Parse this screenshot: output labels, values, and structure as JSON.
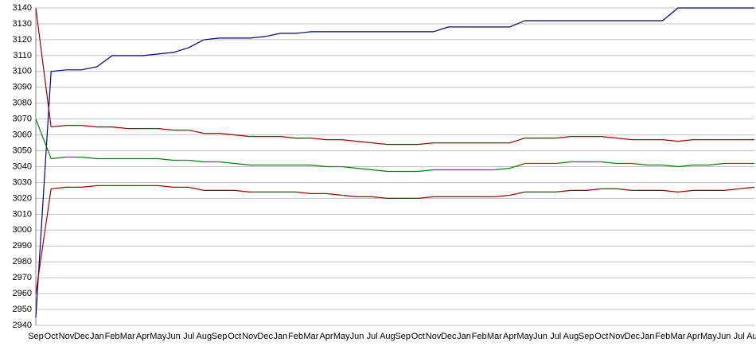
{
  "chart_data": {
    "type": "line",
    "categories": [
      "Sep",
      "Oct",
      "Nov",
      "Dec",
      "Jan",
      "Feb",
      "Mar",
      "Apr",
      "May",
      "Jun",
      "Jul",
      "Aug",
      "Sep",
      "Oct",
      "Nov",
      "Dec",
      "Jan",
      "Feb",
      "Mar",
      "Apr",
      "May",
      "Jun",
      "Jul",
      "Aug",
      "Sep",
      "Oct",
      "Nov",
      "Dec",
      "Jan",
      "Feb",
      "Mar",
      "Apr",
      "May",
      "Jun",
      "Jul",
      "Aug",
      "Sep",
      "Oct",
      "Nov",
      "Dec",
      "Jan",
      "Feb",
      "Mar",
      "Apr",
      "May",
      "Jun",
      "Jul",
      "Aug"
    ],
    "series": [
      {
        "color": "#000080",
        "values": [
          2945,
          3100,
          3101,
          3101,
          3103,
          3110,
          3110,
          3110,
          3111,
          3112,
          3115,
          3120,
          3121,
          3121,
          3121,
          3122,
          3124,
          3124,
          3125,
          3125,
          3125,
          3125,
          3125,
          3125,
          3125,
          3125,
          3125,
          3128,
          3128,
          3128,
          3128,
          3128,
          3132,
          3132,
          3132,
          3132,
          3132,
          3132,
          3132,
          3132,
          3132,
          3132,
          3140,
          3140,
          3140,
          3140,
          3140,
          3140
        ]
      },
      {
        "color": "#a00000",
        "values": [
          3140,
          3065,
          3066,
          3066,
          3065,
          3065,
          3064,
          3064,
          3064,
          3063,
          3063,
          3061,
          3061,
          3060,
          3059,
          3059,
          3059,
          3058,
          3058,
          3057,
          3057,
          3056,
          3055,
          3054,
          3054,
          3054,
          3055,
          3055,
          3055,
          3055,
          3055,
          3055,
          3058,
          3058,
          3058,
          3059,
          3059,
          3059,
          3058,
          3057,
          3057,
          3057,
          3056,
          3057,
          3057,
          3057,
          3057,
          3057
        ]
      },
      {
        "color": "#008000",
        "values": [
          3070,
          3045,
          3046,
          3046,
          3045,
          3045,
          3045,
          3045,
          3045,
          3044,
          3044,
          3043,
          3043,
          3042,
          3041,
          3041,
          3041,
          3041,
          3041,
          3040,
          3040,
          3039,
          3038,
          3037,
          3037,
          3037,
          3038,
          3038,
          3038,
          3038,
          3038,
          3039,
          3042,
          3042,
          3042,
          3043,
          3043,
          3043,
          3042,
          3042,
          3041,
          3041,
          3040,
          3041,
          3041,
          3042,
          3042,
          3042
        ]
      },
      {
        "color": "#a00000",
        "values": [
          2960,
          3026,
          3027,
          3027,
          3028,
          3028,
          3028,
          3028,
          3028,
          3027,
          3027,
          3025,
          3025,
          3025,
          3024,
          3024,
          3024,
          3024,
          3023,
          3023,
          3022,
          3021,
          3021,
          3020,
          3020,
          3020,
          3021,
          3021,
          3021,
          3021,
          3021,
          3022,
          3024,
          3024,
          3024,
          3025,
          3025,
          3026,
          3026,
          3025,
          3025,
          3025,
          3024,
          3025,
          3025,
          3025,
          3026,
          3027
        ]
      }
    ],
    "ylim": [
      2940,
      3140
    ],
    "yticks": [
      2940,
      2950,
      2960,
      2970,
      2980,
      2990,
      3000,
      3010,
      3020,
      3030,
      3040,
      3050,
      3060,
      3070,
      3080,
      3090,
      3100,
      3110,
      3120,
      3130,
      3140
    ],
    "grid": true
  }
}
